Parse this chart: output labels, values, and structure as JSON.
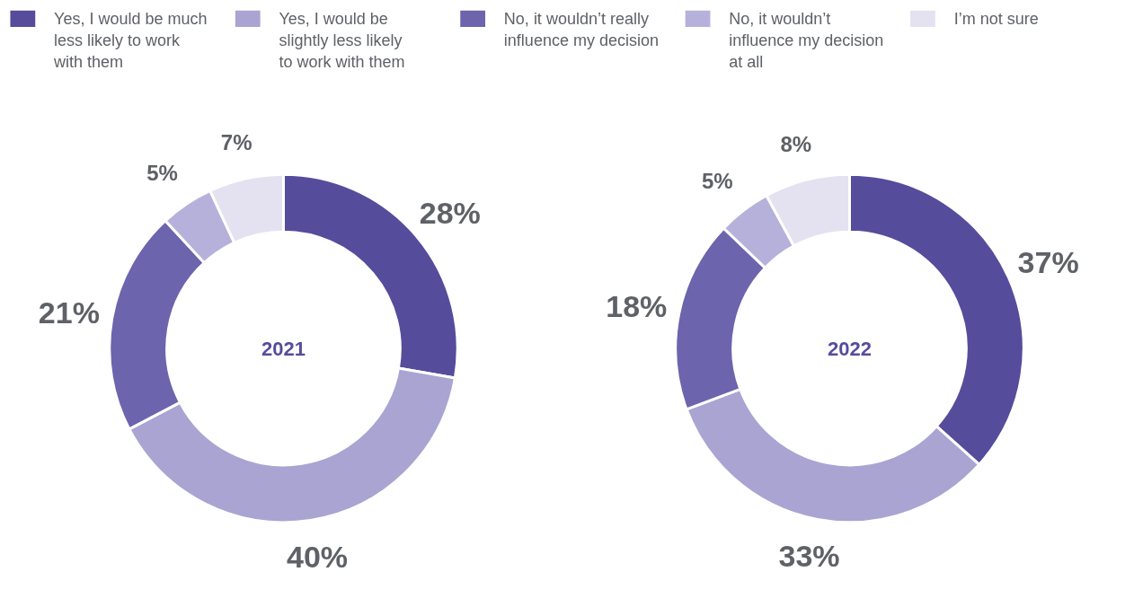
{
  "chart_data": {
    "type": "donut",
    "legend": "top",
    "categories": [
      "Yes, I would be much less likely to work with them",
      "Yes, I would be slightly less likely to work with them",
      "No, it wouldn’t really influence my decision",
      "No, it wouldn’t influence my decision at all",
      "I’m not sure"
    ],
    "colors": [
      "#564c9c",
      "#aaa4d2",
      "#6c64ad",
      "#b6b1da",
      "#e4e2f1"
    ],
    "series": [
      {
        "name": "2021",
        "values": [
          28,
          40,
          21,
          5,
          7
        ],
        "value_labels": [
          "28%",
          "40%",
          "21%",
          "5%",
          "7%"
        ]
      },
      {
        "name": "2022",
        "values": [
          37,
          33,
          18,
          5,
          8
        ],
        "value_labels": [
          "37%",
          "33%",
          "18%",
          "5%",
          "8%"
        ]
      }
    ]
  }
}
